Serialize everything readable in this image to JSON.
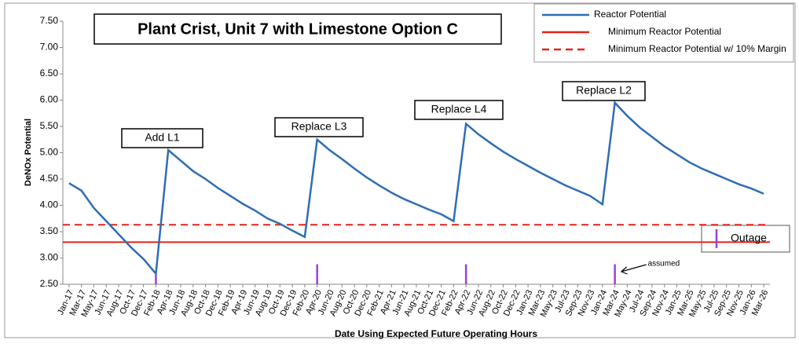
{
  "chart_data": {
    "type": "line",
    "title": "Plant Crist, Unit 7 with Limestone Option C",
    "y_label": "DeNOx Potential",
    "x_label": "Date Using Expected Future Operating Hours",
    "categories": [
      "Jan-17",
      "Mar-17",
      "May-17",
      "Jun-17",
      "Aug-17",
      "Oct-17",
      "Dec-17",
      "Feb-18",
      "Apr-18",
      "Jun-18",
      "Aug-18",
      "Oct-18",
      "Dec-18",
      "Feb-19",
      "Apr-19",
      "Jun-19",
      "Aug-19",
      "Oct-19",
      "Dec-19",
      "Feb-20",
      "Apr-20",
      "Jun-20",
      "Aug-20",
      "Oct-20",
      "Dec-20",
      "Feb-21",
      "Apr-21",
      "Jun-21",
      "Aug-21",
      "Oct-21",
      "Dec-21",
      "Feb-22",
      "Apr-22",
      "Jun-22",
      "Aug-22",
      "Oct-22",
      "Dec-22",
      "Jan-23",
      "Mar-23",
      "May-23",
      "Jul-23",
      "Sep-23",
      "Nov-23",
      "Jan-24",
      "Mar-24",
      "May-24",
      "Jul-24",
      "Sep-24",
      "Nov-24",
      "Jan-25",
      "Mar-25",
      "May-25",
      "Jul-25",
      "Sep-25",
      "Nov-25",
      "Jan-26",
      "Mar-26"
    ],
    "series": [
      {
        "name": "Reactor Potential",
        "color": "#2e6db4",
        "values": [
          4.42,
          4.28,
          3.95,
          3.7,
          3.45,
          3.2,
          2.98,
          2.7,
          5.05,
          4.85,
          4.65,
          4.5,
          4.33,
          4.18,
          4.03,
          3.9,
          3.75,
          3.65,
          3.52,
          3.4,
          5.25,
          5.05,
          4.88,
          4.7,
          4.53,
          4.38,
          4.24,
          4.12,
          4.02,
          3.92,
          3.83,
          3.7,
          5.55,
          5.35,
          5.18,
          5.02,
          4.88,
          4.75,
          4.62,
          4.5,
          4.38,
          4.28,
          4.18,
          4.02,
          5.95,
          5.7,
          5.48,
          5.3,
          5.12,
          4.97,
          4.82,
          4.7,
          4.6,
          4.5,
          4.4,
          4.32,
          4.22
        ]
      }
    ],
    "hlines": [
      {
        "name": "Minimum Reactor Potential",
        "color": "#e8201c",
        "value": 3.3,
        "dash": false
      },
      {
        "name": "Minimum Reactor Potential w/ 10% Margin",
        "color": "#e8201c",
        "value": 3.63,
        "dash": true
      }
    ],
    "outages": {
      "label": "Outage",
      "color": "#9b3fd6",
      "categories": [
        "Feb-18",
        "Apr-20",
        "Apr-22",
        "Mar-24"
      ],
      "values": [
        2.68,
        2.88,
        2.88,
        2.88
      ]
    },
    "annotations": [
      "Add L1",
      "Replace L3",
      "Replace L4",
      "Replace L2"
    ],
    "assumed_note": "assumed",
    "ylim": [
      2.5,
      7.5
    ],
    "yticks": [
      {
        "value": 2.5,
        "label": "2.50"
      },
      {
        "value": 3,
        "label": "3.00"
      },
      {
        "value": 3.5,
        "label": "3.50"
      },
      {
        "value": 4,
        "label": "4.00"
      },
      {
        "value": 4.5,
        "label": "4.50"
      },
      {
        "value": 5,
        "label": "5.00"
      },
      {
        "value": 5.5,
        "label": "5.50"
      },
      {
        "value": 6,
        "label": "6.00"
      },
      {
        "value": 6.5,
        "label": "6.50"
      },
      {
        "value": 7,
        "label": "7.00"
      },
      {
        "value": 7.5,
        "label": "7.50"
      }
    ],
    "grid": false
  }
}
